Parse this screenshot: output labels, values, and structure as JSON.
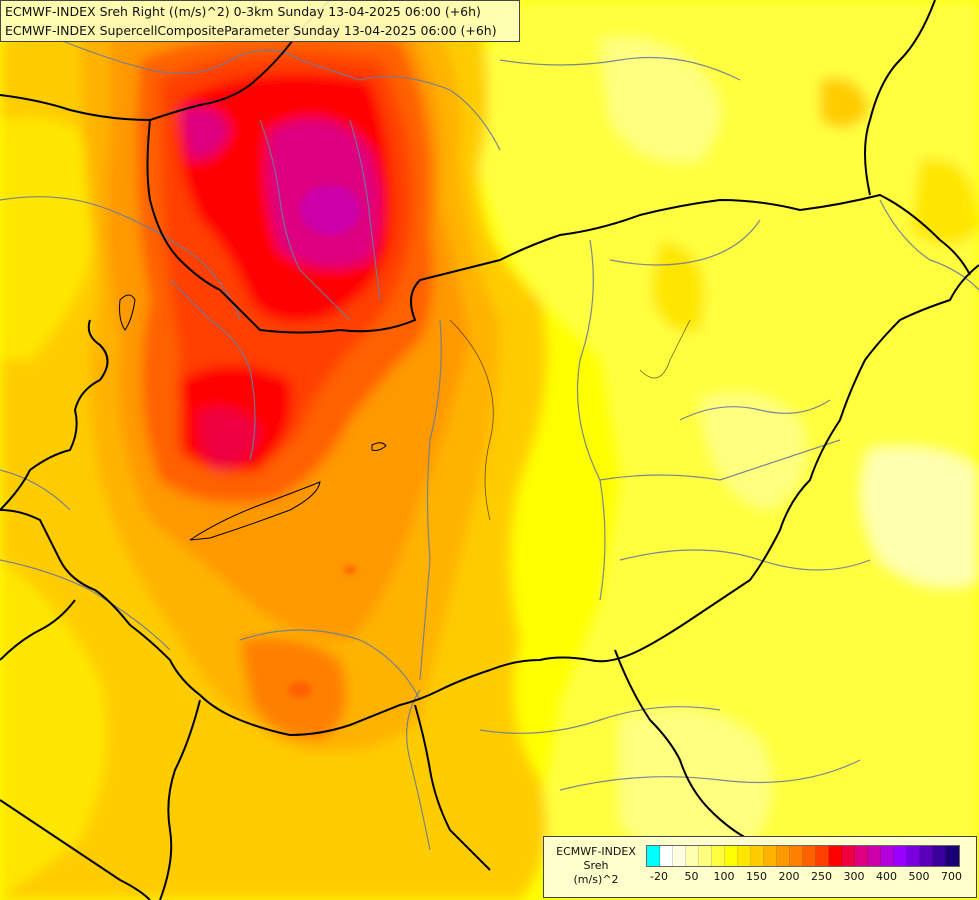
{
  "title": {
    "line1": "ECMWF-INDEX Sreh Right ((m/s)^2) 0-3km Sunday 13-04-2025 06:00 (+6h)",
    "line2": "ECMWF-INDEX SupercellCompositeParameter Sunday 13-04-2025 06:00 (+6h)"
  },
  "legend": {
    "title_line1": "ECMWF-INDEX",
    "title_line2": "Sreh",
    "title_line3": "(m/s)^2",
    "colors": [
      "#00ffff",
      "#ffffff",
      "#ffffe0",
      "#ffffb0",
      "#ffff80",
      "#ffff40",
      "#ffff00",
      "#ffe600",
      "#ffcc00",
      "#ffb300",
      "#ff9900",
      "#ff8000",
      "#ff6000",
      "#ff4000",
      "#ff0000",
      "#ee0040",
      "#dd0080",
      "#cc00aa",
      "#b400dd",
      "#9a00ff",
      "#7a00dd",
      "#5a00bb",
      "#3a0099",
      "#1a0077"
    ],
    "tick_labels": [
      "-20",
      "50",
      "100",
      "150",
      "200",
      "250",
      "300",
      "400",
      "500",
      "700"
    ]
  },
  "colors": {
    "border": "#000000",
    "river": "#6e7a99",
    "background_field": "#ffff00"
  }
}
